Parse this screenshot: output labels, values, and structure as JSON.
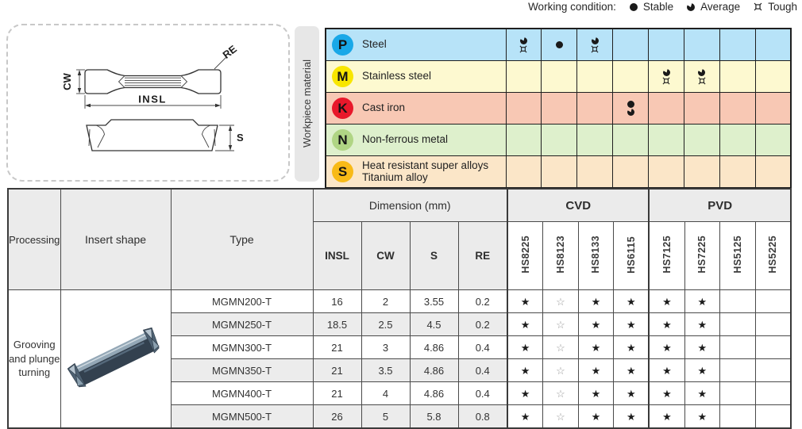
{
  "legend": {
    "label": "Working condition:",
    "items": [
      {
        "icon": "stable",
        "label": "Stable"
      },
      {
        "icon": "average",
        "label": "Average"
      },
      {
        "icon": "tough",
        "label": "Tough"
      }
    ]
  },
  "diagram": {
    "cw": "CW",
    "insl": "INSL",
    "re": "RE",
    "s": "S"
  },
  "workpiece": {
    "sidebar_label": "Workpiece material",
    "rows": [
      {
        "code": "P",
        "name_lines": [
          "Steel"
        ],
        "circle_color": "#18a8e8",
        "row_color": "#b7e3f8",
        "cells": [
          [
            "average",
            "tough"
          ],
          [
            "stable"
          ],
          [
            "average",
            "tough"
          ],
          [],
          [],
          [],
          [],
          []
        ]
      },
      {
        "code": "M",
        "name_lines": [
          "Stainless steel"
        ],
        "circle_color": "#f8e600",
        "row_color": "#fdf9d0",
        "cells": [
          [],
          [],
          [],
          [],
          [
            "average",
            "tough"
          ],
          [
            "average",
            "tough"
          ],
          [],
          []
        ]
      },
      {
        "code": "K",
        "name_lines": [
          "Cast iron"
        ],
        "circle_color": "#e8182b",
        "row_color": "#f8c8b4",
        "cells": [
          [],
          [],
          [],
          [
            "stable",
            "average"
          ],
          [],
          [],
          [],
          []
        ]
      },
      {
        "code": "N",
        "name_lines": [
          "Non-ferrous metal"
        ],
        "circle_color": "#b0d584",
        "row_color": "#def0cc",
        "cells": [
          [],
          [],
          [],
          [],
          [],
          [],
          [],
          []
        ]
      },
      {
        "code": "S",
        "name_lines": [
          "Heat resistant super alloys",
          "Titanium alloy"
        ],
        "circle_color": "#f8ba17",
        "row_color": "#fbe6c8",
        "cells": [
          [],
          [],
          [],
          [],
          [],
          [],
          [],
          []
        ]
      }
    ]
  },
  "table": {
    "header": {
      "processing": "Processing",
      "insert_shape": "Insert shape",
      "type": "Type",
      "dimension": "Dimension (mm)",
      "dims": [
        "INSL",
        "CW",
        "S",
        "RE"
      ],
      "cvd": "CVD",
      "pvd": "PVD",
      "cvd_grades": [
        "HS8225",
        "HS8123",
        "HS8133",
        "HS6115"
      ],
      "pvd_grades": [
        "HS7125",
        "HS7225",
        "HS5125",
        "HS5225"
      ]
    },
    "processing_text": "Grooving and plunge turning",
    "rows": [
      {
        "type": "MGMN200-T",
        "insl": "16",
        "cw": "2",
        "s": "3.55",
        "re": "0.2",
        "stars": [
          "filled",
          "outline",
          "filled",
          "filled",
          "filled",
          "filled",
          "",
          ""
        ]
      },
      {
        "type": "MGMN250-T",
        "insl": "18.5",
        "cw": "2.5",
        "s": "4.5",
        "re": "0.2",
        "stars": [
          "filled",
          "outline",
          "filled",
          "filled",
          "filled",
          "filled",
          "",
          ""
        ]
      },
      {
        "type": "MGMN300-T",
        "insl": "21",
        "cw": "3",
        "s": "4.86",
        "re": "0.4",
        "stars": [
          "filled",
          "outline",
          "filled",
          "filled",
          "filled",
          "filled",
          "",
          ""
        ]
      },
      {
        "type": "MGMN350-T",
        "insl": "21",
        "cw": "3.5",
        "s": "4.86",
        "re": "0.4",
        "stars": [
          "filled",
          "outline",
          "filled",
          "filled",
          "filled",
          "filled",
          "",
          ""
        ]
      },
      {
        "type": "MGMN400-T",
        "insl": "21",
        "cw": "4",
        "s": "4.86",
        "re": "0.4",
        "stars": [
          "filled",
          "outline",
          "filled",
          "filled",
          "filled",
          "filled",
          "",
          ""
        ]
      },
      {
        "type": "MGMN500-T",
        "insl": "26",
        "cw": "5",
        "s": "5.8",
        "re": "0.8",
        "stars": [
          "filled",
          "outline",
          "filled",
          "filled",
          "filled",
          "filled",
          "",
          ""
        ]
      }
    ],
    "colors": {
      "header_bg": "#ebebeb",
      "alt_row_bg": "#ececec",
      "star_filled": "#1c1c1c",
      "star_outline": "#9c9c9c"
    }
  }
}
